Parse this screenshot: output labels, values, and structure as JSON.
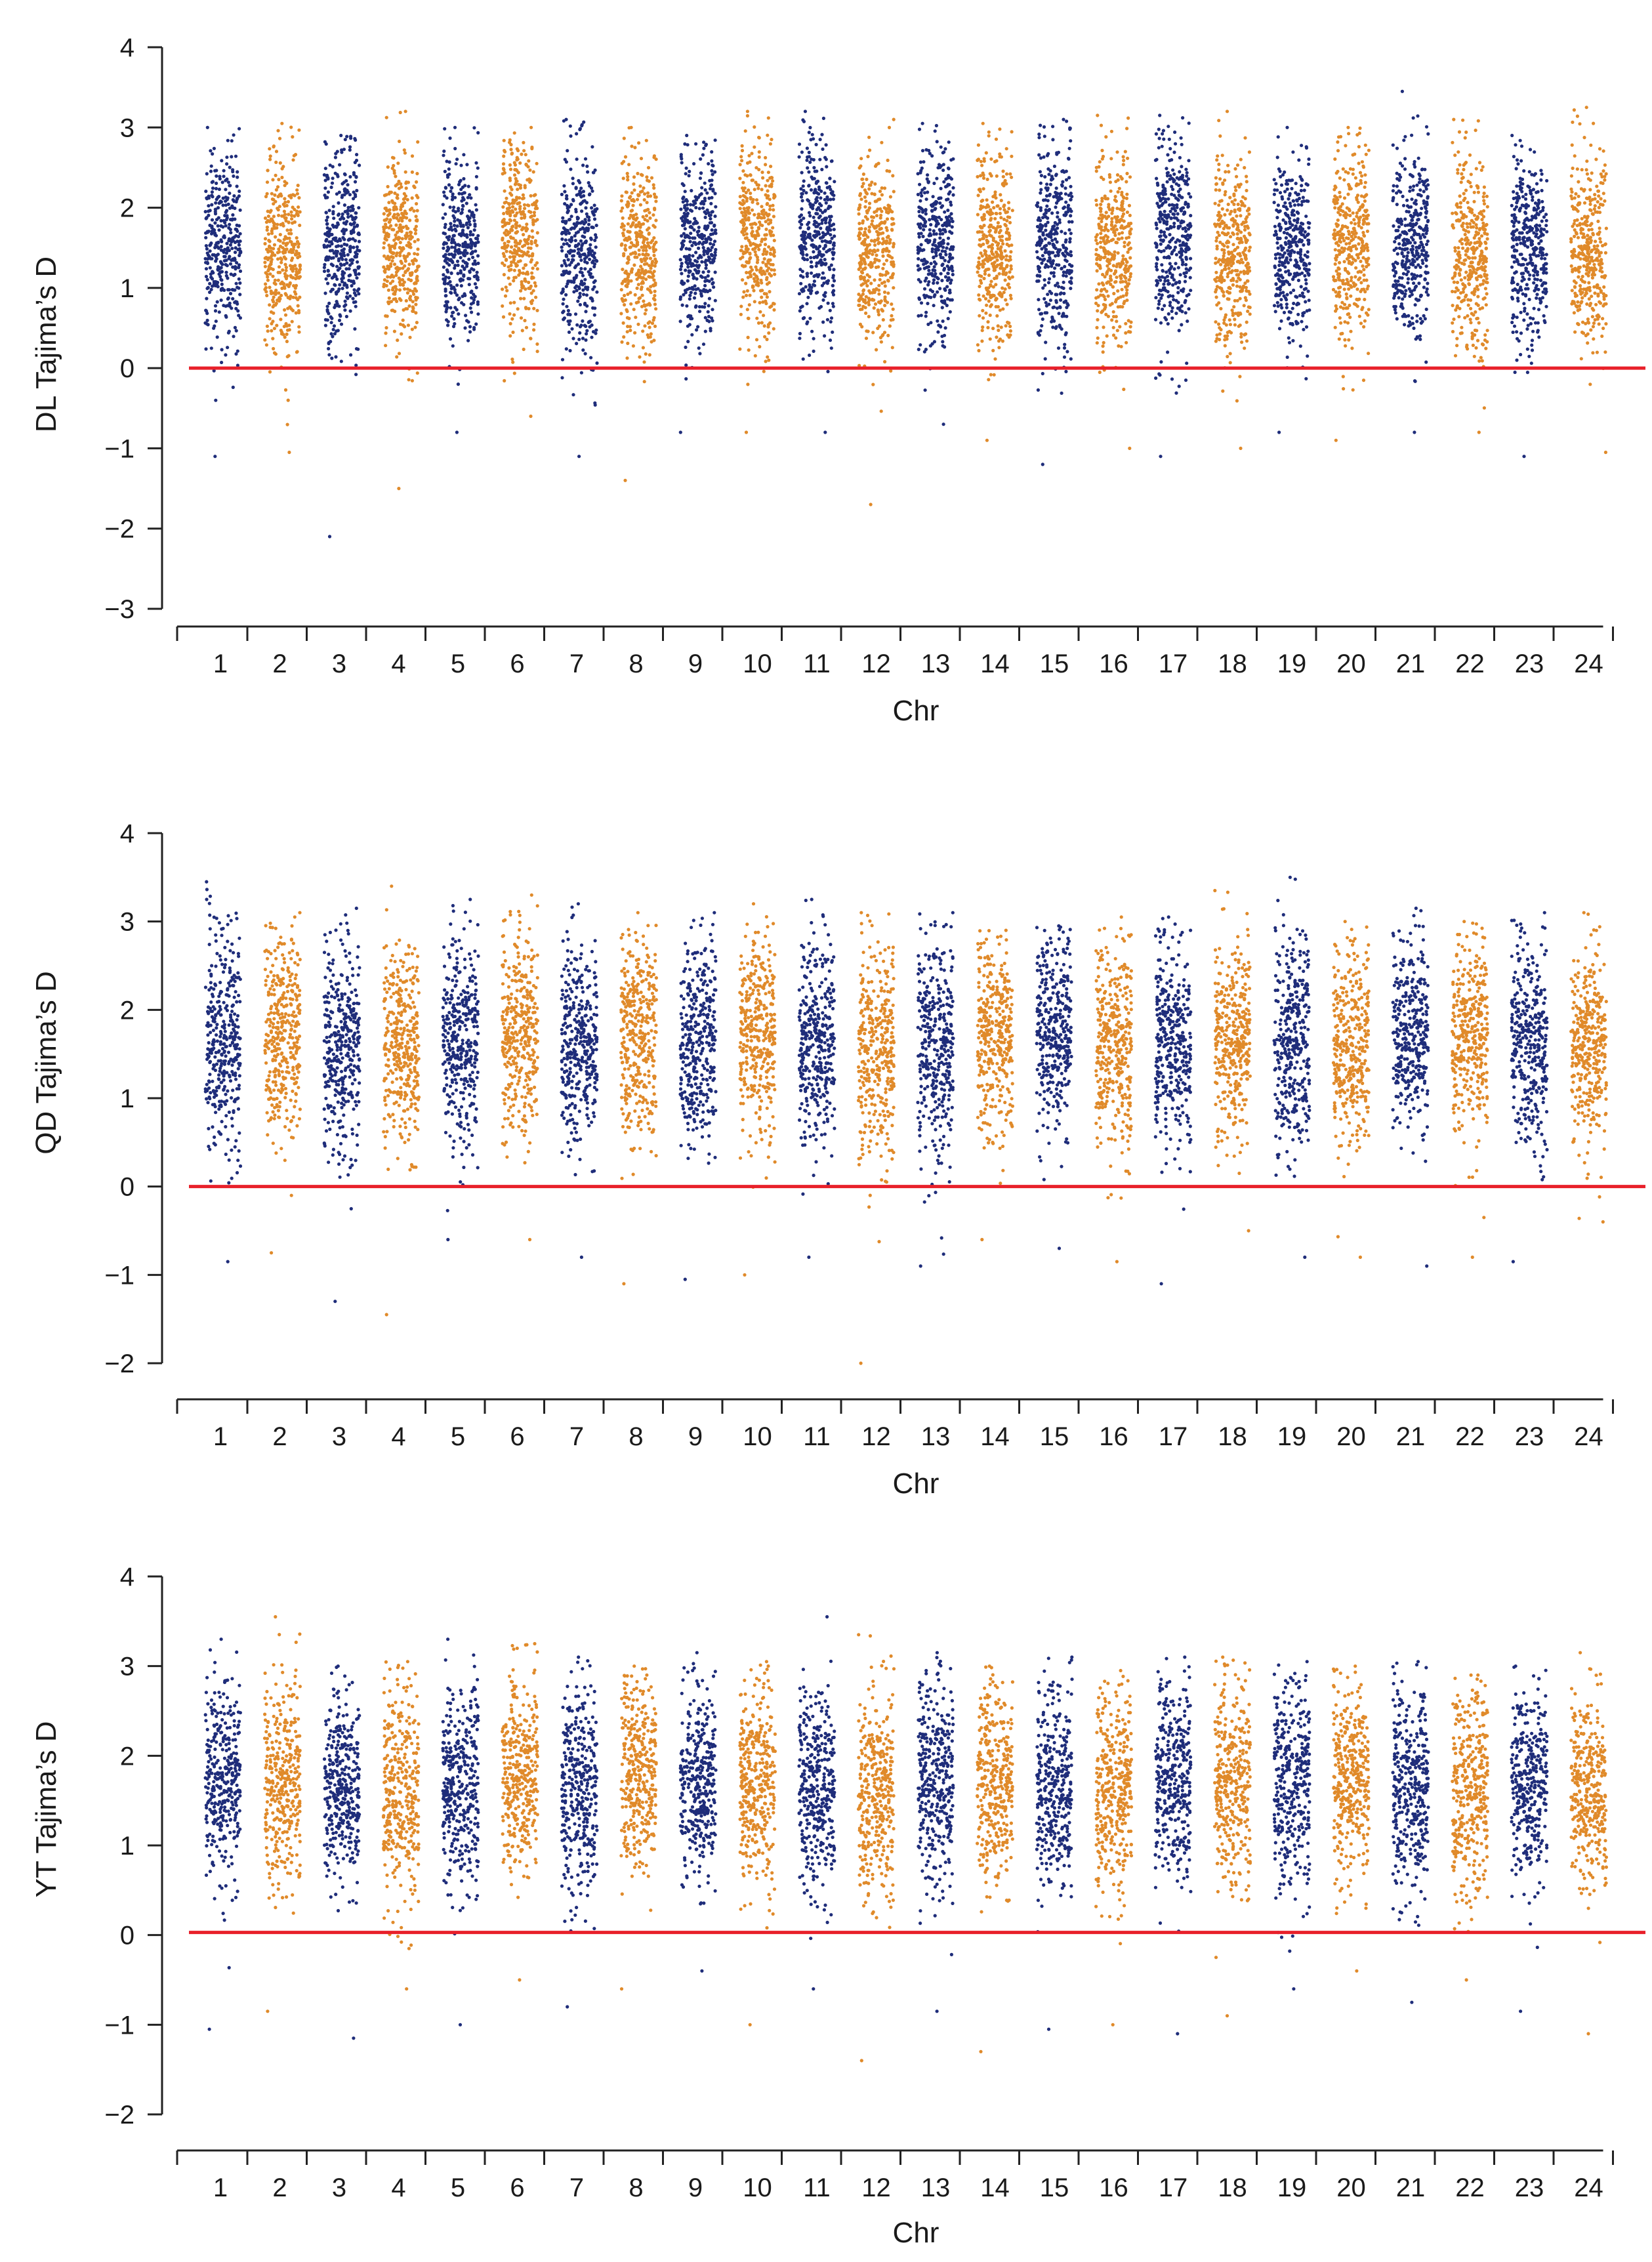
{
  "colors": {
    "odd_chromosome": "#1f2d7a",
    "even_chromosome": "#e08a2a",
    "reference_line": "#e8202a",
    "axis": "#222222"
  },
  "chart_data": [
    {
      "type": "scatter",
      "population": "DL",
      "ylabel": "DL Tajima’s D",
      "xlabel": "Chr",
      "ylim": [
        -3,
        4
      ],
      "yticks": [
        -3,
        -2,
        -1,
        0,
        1,
        2,
        3,
        4
      ],
      "categories": [
        "1",
        "2",
        "3",
        "4",
        "5",
        "6",
        "7",
        "8",
        "9",
        "10",
        "11",
        "12",
        "13",
        "14",
        "15",
        "16",
        "17",
        "18",
        "19",
        "20",
        "21",
        "22",
        "23",
        "24"
      ],
      "reference_line": 0,
      "series": [
        {
          "name": "Chr",
          "values": [
            1.55,
            1.45,
            1.55,
            1.5,
            1.5,
            1.65,
            1.45,
            1.45,
            1.55,
            1.6,
            1.65,
            1.45,
            1.65,
            1.5,
            1.55,
            1.5,
            1.65,
            1.45,
            1.45,
            1.55,
            1.5,
            1.45,
            1.5,
            1.5
          ],
          "spread": [
            0.75,
            0.7,
            0.7,
            0.7,
            0.75,
            0.7,
            0.75,
            0.7,
            0.7,
            0.7,
            0.7,
            0.7,
            0.7,
            0.7,
            0.75,
            0.7,
            0.75,
            0.7,
            0.7,
            0.7,
            0.7,
            0.7,
            0.7,
            0.7
          ],
          "max": [
            3.0,
            3.05,
            2.9,
            3.2,
            3.0,
            3.0,
            3.1,
            3.0,
            2.9,
            3.2,
            3.2,
            3.1,
            3.05,
            3.05,
            3.1,
            3.15,
            3.15,
            3.2,
            3.0,
            3.0,
            3.45,
            3.1,
            2.9,
            3.25
          ],
          "min": [
            -1.1,
            -1.05,
            -2.1,
            -1.5,
            -0.8,
            -0.6,
            -1.1,
            -1.4,
            -0.8,
            -0.8,
            -0.8,
            -1.7,
            -0.7,
            -0.9,
            -1.2,
            -1.0,
            -1.1,
            -1.0,
            -0.8,
            -0.9,
            -0.8,
            -0.8,
            -1.1,
            -1.05
          ]
        }
      ]
    },
    {
      "type": "scatter",
      "population": "QD",
      "ylabel": "QD Tajima’s D",
      "xlabel": "Chr",
      "ylim": [
        -2,
        4
      ],
      "yticks": [
        -2,
        -1,
        0,
        1,
        2,
        3,
        4
      ],
      "categories": [
        "1",
        "2",
        "3",
        "4",
        "5",
        "6",
        "7",
        "8",
        "9",
        "10",
        "11",
        "12",
        "13",
        "14",
        "15",
        "16",
        "17",
        "18",
        "19",
        "20",
        "21",
        "22",
        "23",
        "24"
      ],
      "reference_line": 0,
      "series": [
        {
          "name": "Chr",
          "values": [
            1.6,
            1.7,
            1.6,
            1.6,
            1.65,
            1.7,
            1.6,
            1.7,
            1.6,
            1.7,
            1.6,
            1.55,
            1.6,
            1.7,
            1.7,
            1.6,
            1.6,
            1.65,
            1.6,
            1.6,
            1.7,
            1.7,
            1.6,
            1.6
          ],
          "spread": [
            0.7,
            0.65,
            0.7,
            0.7,
            0.7,
            0.65,
            0.7,
            0.65,
            0.7,
            0.65,
            0.7,
            0.7,
            0.7,
            0.65,
            0.65,
            0.7,
            0.7,
            0.65,
            0.7,
            0.7,
            0.65,
            0.65,
            0.7,
            0.65
          ],
          "max": [
            3.45,
            3.1,
            3.15,
            3.4,
            3.25,
            3.3,
            3.2,
            3.1,
            3.1,
            3.2,
            3.25,
            3.1,
            3.1,
            2.9,
            2.95,
            3.05,
            3.05,
            3.35,
            3.5,
            3.0,
            3.15,
            3.0,
            3.1,
            3.1
          ],
          "min": [
            -0.85,
            -0.75,
            -1.3,
            -1.45,
            -0.6,
            -0.6,
            -0.8,
            -1.1,
            -1.05,
            -1.0,
            -0.8,
            -2.0,
            -0.9,
            -0.6,
            -0.7,
            -0.85,
            -1.1,
            -0.5,
            -0.8,
            -0.8,
            -0.9,
            -0.8,
            -0.85,
            -0.4
          ]
        }
      ]
    },
    {
      "type": "scatter",
      "population": "YT",
      "ylabel": "YT Tajima’s D",
      "xlabel": "Chr",
      "ylim": [
        -2,
        4
      ],
      "yticks": [
        -2,
        -1,
        0,
        1,
        2,
        3,
        4
      ],
      "categories": [
        "1",
        "2",
        "3",
        "4",
        "5",
        "6",
        "7",
        "8",
        "9",
        "10",
        "11",
        "12",
        "13",
        "14",
        "15",
        "16",
        "17",
        "18",
        "19",
        "20",
        "21",
        "22",
        "23",
        "24"
      ],
      "reference_line": 0.03,
      "series": [
        {
          "name": "Chr",
          "values": [
            1.75,
            1.65,
            1.65,
            1.6,
            1.7,
            1.7,
            1.6,
            1.75,
            1.7,
            1.7,
            1.65,
            1.6,
            1.7,
            1.7,
            1.65,
            1.6,
            1.7,
            1.7,
            1.65,
            1.7,
            1.65,
            1.65,
            1.65,
            1.6
          ],
          "spread": [
            0.65,
            0.7,
            0.65,
            0.7,
            0.65,
            0.65,
            0.7,
            0.65,
            0.65,
            0.65,
            0.7,
            0.7,
            0.7,
            0.65,
            0.7,
            0.7,
            0.65,
            0.65,
            0.7,
            0.65,
            0.7,
            0.7,
            0.65,
            0.65
          ],
          "max": [
            3.3,
            3.55,
            3.0,
            3.05,
            3.3,
            3.25,
            3.1,
            3.0,
            3.15,
            3.05,
            3.55,
            3.35,
            3.15,
            3.0,
            3.1,
            2.95,
            3.1,
            3.1,
            3.05,
            3.0,
            3.05,
            2.9,
            3.0,
            3.15
          ],
          "min": [
            -1.05,
            -0.85,
            -1.15,
            -0.6,
            -1.0,
            -0.5,
            -0.8,
            -0.6,
            -0.4,
            -1.0,
            -0.6,
            -1.4,
            -0.85,
            -1.3,
            -1.05,
            -1.0,
            -1.1,
            -0.9,
            -0.6,
            -0.4,
            -0.75,
            -0.5,
            -0.85,
            -1.1
          ]
        }
      ]
    }
  ]
}
